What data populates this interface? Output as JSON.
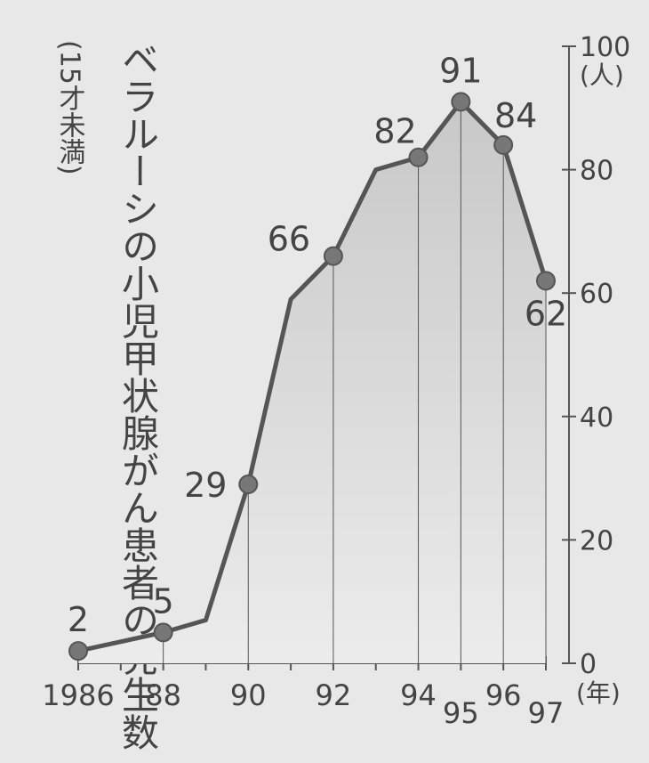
{
  "chart_data": {
    "type": "area-line",
    "title": "ベラルーシの小児甲状腺がん患者の発生数",
    "subtitle": "(15才未満)",
    "x_unit": "(年)",
    "y_unit": "(人)",
    "x": [
      1986,
      1988,
      1989,
      1990,
      1991,
      1992,
      1993,
      1994,
      1995,
      1996,
      1997
    ],
    "values": [
      2,
      5,
      7,
      29,
      59,
      66,
      80,
      82,
      91,
      84,
      62
    ],
    "value_labels": [
      "2",
      "5",
      null,
      "29",
      null,
      "66",
      null,
      "82",
      "91",
      "84",
      "62"
    ],
    "color": "#555555",
    "xlim": [
      1986,
      1997
    ],
    "xticks": [
      {
        "value": 1986,
        "label": "1986"
      },
      {
        "value": 1987,
        "label": null
      },
      {
        "value": 1988,
        "label": "88"
      },
      {
        "value": 1989,
        "label": null
      },
      {
        "value": 1990,
        "label": "90"
      },
      {
        "value": 1991,
        "label": null
      },
      {
        "value": 1992,
        "label": "92"
      },
      {
        "value": 1993,
        "label": null
      },
      {
        "value": 1994,
        "label": "94"
      },
      {
        "value": 1995,
        "label": "95"
      },
      {
        "value": 1996,
        "label": "96"
      },
      {
        "value": 1997,
        "label": "97"
      }
    ],
    "ylim": [
      0,
      100
    ],
    "yticks": [
      0,
      20,
      40,
      60,
      80,
      100
    ]
  }
}
